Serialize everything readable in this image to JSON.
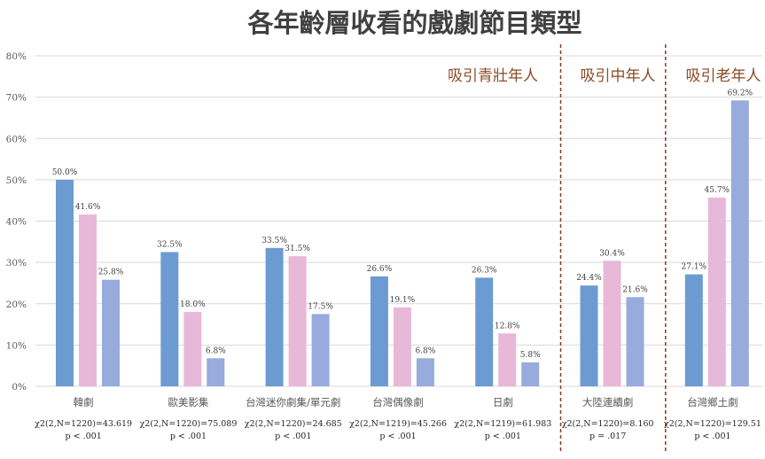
{
  "chart_data": {
    "type": "bar",
    "title": "各年齡層收看的戲劇節目類型",
    "ylim": [
      0,
      80
    ],
    "yticks": [
      0,
      10,
      20,
      30,
      40,
      50,
      60,
      70,
      80
    ],
    "ytick_labels": [
      "0%",
      "10%",
      "20%",
      "30%",
      "40%",
      "50%",
      "60%",
      "70%",
      "80%"
    ],
    "grid": true,
    "categories": [
      "韓劇",
      "歐美影集",
      "台灣迷你劇集/單元劇",
      "台灣偶像劇",
      "日劇",
      "大陸連續劇",
      "台灣鄉土劇"
    ],
    "series": [
      {
        "color": "#6c9bd2",
        "values": [
          50.0,
          32.5,
          33.5,
          26.6,
          26.3,
          24.4,
          27.1
        ],
        "labels": [
          "50.0%",
          "32.5%",
          "33.5%",
          "26.6%",
          "26.3%",
          "24.4%",
          "27.1%"
        ]
      },
      {
        "color": "#e8b8d8",
        "values": [
          41.6,
          18.0,
          31.5,
          19.1,
          12.8,
          30.4,
          45.7
        ],
        "labels": [
          "41.6%",
          "18.0%",
          "31.5%",
          "19.1%",
          "12.8%",
          "30.4%",
          "45.7%"
        ]
      },
      {
        "color": "#97abdc",
        "values": [
          25.8,
          6.8,
          17.5,
          6.8,
          5.8,
          21.6,
          69.2
        ],
        "labels": [
          "25.8%",
          "6.8%",
          "17.5%",
          "6.8%",
          "5.8%",
          "21.6%",
          "69.2%"
        ]
      }
    ],
    "stats": [
      {
        "chi": "χ2(2,N=1220)=43.619",
        "p": "p < .001"
      },
      {
        "chi": "χ2(2,N=1220)=75.089",
        "p": "p < .001"
      },
      {
        "chi": "χ2(2,N=1220)=24.685",
        "p": "p < .001"
      },
      {
        "chi": "χ2(2,N=1219)=45.266",
        "p": "p < .001"
      },
      {
        "chi": "χ2(2,N=1219)=61.983",
        "p": "p < .001"
      },
      {
        "chi": "χ2(2,N=1220)=8.160",
        "p": "p = .017"
      },
      {
        "chi": "χ2(2,N=1220)=129.51",
        "p": "p < .001"
      }
    ],
    "groups": [
      {
        "label": "吸引青壯年人",
        "from": 0,
        "to": 4
      },
      {
        "label": "吸引中年人",
        "from": 5,
        "to": 5
      },
      {
        "label": "吸引老年人",
        "from": 6,
        "to": 6
      }
    ],
    "colors": {
      "group_label": "#8b4a26",
      "divider": "#8b3a1a",
      "grid": "#d9d9d9",
      "axis_text": "#595959",
      "title": "#404040"
    }
  }
}
